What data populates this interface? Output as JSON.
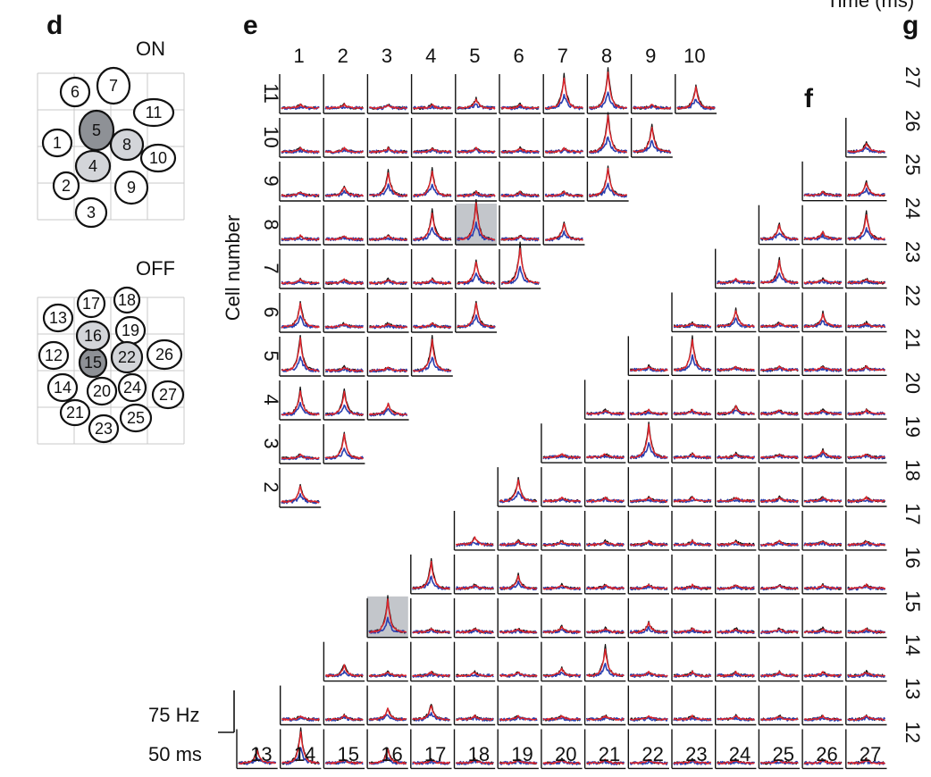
{
  "figure": {
    "panel_labels": {
      "d": "d",
      "e": "e",
      "f": "f",
      "g": "g"
    },
    "time_label": "Time (ms)",
    "on_label": "ON",
    "off_label": "OFF",
    "y_axis_label": "Cell number",
    "scale_bar": {
      "rate": "75 Hz",
      "time": "50 ms"
    },
    "on_cells": [
      {
        "id": "1",
        "shade": "none"
      },
      {
        "id": "2",
        "shade": "none"
      },
      {
        "id": "3",
        "shade": "none"
      },
      {
        "id": "4",
        "shade": "light"
      },
      {
        "id": "5",
        "shade": "dark"
      },
      {
        "id": "6",
        "shade": "none"
      },
      {
        "id": "7",
        "shade": "none"
      },
      {
        "id": "8",
        "shade": "light"
      },
      {
        "id": "9",
        "shade": "none"
      },
      {
        "id": "10",
        "shade": "none"
      },
      {
        "id": "11",
        "shade": "none"
      }
    ],
    "off_cells": [
      {
        "id": "12",
        "shade": "none"
      },
      {
        "id": "13",
        "shade": "none"
      },
      {
        "id": "14",
        "shade": "none"
      },
      {
        "id": "15",
        "shade": "dark"
      },
      {
        "id": "16",
        "shade": "light"
      },
      {
        "id": "17",
        "shade": "none"
      },
      {
        "id": "18",
        "shade": "none"
      },
      {
        "id": "19",
        "shade": "none"
      },
      {
        "id": "20",
        "shade": "none"
      },
      {
        "id": "21",
        "shade": "none"
      },
      {
        "id": "22",
        "shade": "light"
      },
      {
        "id": "23",
        "shade": "none"
      },
      {
        "id": "24",
        "shade": "none"
      },
      {
        "id": "25",
        "shade": "none"
      },
      {
        "id": "26",
        "shade": "none"
      },
      {
        "id": "27",
        "shade": "none"
      }
    ],
    "panel_e": {
      "column_labels": [
        "1",
        "2",
        "3",
        "4",
        "5",
        "6",
        "7",
        "8",
        "9",
        "10"
      ],
      "row_labels": [
        "11",
        "10",
        "9",
        "8",
        "7",
        "6",
        "5",
        "4",
        "3",
        "2"
      ],
      "highlighted_pair": [
        "5",
        "8"
      ]
    },
    "panel_f": {
      "column_labels": [
        "13",
        "14",
        "15",
        "16",
        "17",
        "18",
        "19",
        "20",
        "21",
        "22",
        "23",
        "24",
        "25",
        "26",
        "27"
      ],
      "row_labels": [
        "27",
        "26",
        "25",
        "24",
        "23",
        "22",
        "21",
        "20",
        "19",
        "18",
        "17",
        "16",
        "15",
        "14",
        "13",
        "12"
      ],
      "highlighted_pair": [
        "16",
        "15"
      ]
    },
    "trace_colors": {
      "black": "#111111",
      "red": "#e0242b",
      "blue": "#2a3fb0"
    },
    "highlight_color": "#c3c6cb",
    "light_cell_color": "#d3d5d9",
    "dark_cell_color": "#8e9196"
  }
}
